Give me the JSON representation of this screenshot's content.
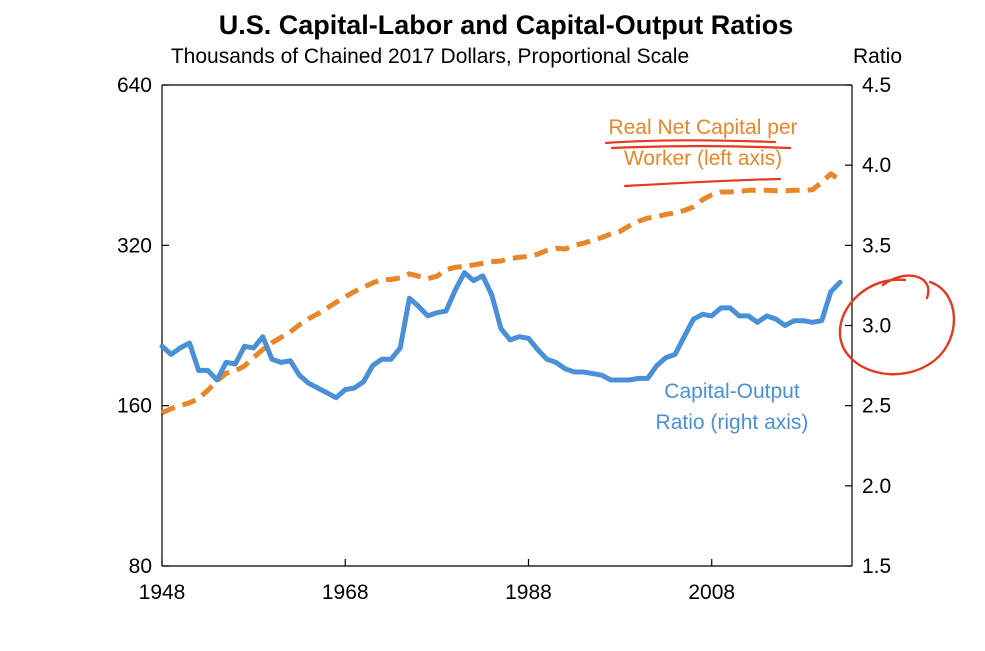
{
  "chart_data": {
    "type": "line",
    "title": "U.S. Capital-Labor  and Capital-Output  Ratios",
    "subtitle": "Thousands of Chained 2017 Dollars, Proportional Scale",
    "right_axis_label": "Ratio",
    "left_axis": {
      "scale": "log",
      "range": [
        80,
        640
      ],
      "ticks": [
        "640",
        "320",
        "160",
        "80"
      ],
      "tick_values": [
        640,
        320,
        160,
        80
      ]
    },
    "right_axis": {
      "scale": "linear",
      "range": [
        1.5,
        4.5
      ],
      "ticks": [
        "4.5",
        "4.0",
        "3.5",
        "3.0",
        "2.5",
        "2.0",
        "1.5"
      ],
      "tick_values": [
        4.5,
        4.0,
        3.5,
        3.0,
        2.5,
        2.0,
        1.5
      ]
    },
    "x_axis": {
      "range": [
        1948,
        2022
      ],
      "ticks": [
        "1948",
        "1968",
        "1988",
        "2008"
      ],
      "tick_values": [
        1948,
        1968,
        1988,
        2008
      ]
    },
    "grid": false,
    "series": [
      {
        "name_line1": "Real Net Capital per",
        "name_line2": "Worker (left axis)",
        "axis": "left",
        "color": "#e8862a",
        "style": "dashed",
        "x": [
          1948,
          1949,
          1950,
          1951,
          1952,
          1953,
          1954,
          1955,
          1956,
          1957,
          1958,
          1959,
          1960,
          1961,
          1962,
          1963,
          1964,
          1965,
          1966,
          1967,
          1968,
          1969,
          1970,
          1971,
          1972,
          1973,
          1974,
          1975,
          1976,
          1977,
          1978,
          1979,
          1980,
          1981,
          1982,
          1983,
          1984,
          1985,
          1986,
          1987,
          1988,
          1989,
          1990,
          1991,
          1992,
          1993,
          1994,
          1995,
          1996,
          1997,
          1998,
          1999,
          2000,
          2001,
          2002,
          2003,
          2004,
          2005,
          2006,
          2007,
          2008,
          2009,
          2010,
          2011,
          2012,
          2013,
          2014,
          2015,
          2016,
          2017,
          2018,
          2019,
          2020,
          2021,
          2022
        ],
        "values": [
          155,
          158,
          160,
          162,
          165,
          171,
          178,
          184,
          186,
          190,
          197,
          204,
          210,
          215,
          220,
          227,
          233,
          238,
          244,
          250,
          256,
          262,
          267,
          272,
          276,
          276,
          278,
          283,
          280,
          277,
          280,
          288,
          291,
          292,
          294,
          296,
          298,
          299,
          302,
          304,
          305,
          308,
          313,
          316,
          315,
          320,
          323,
          327,
          331,
          336,
          340,
          348,
          355,
          360,
          362,
          366,
          368,
          372,
          378,
          390,
          398,
          403,
          403,
          404,
          406,
          406,
          406,
          405,
          405,
          406,
          406,
          407,
          420,
          436,
          424
        ]
      },
      {
        "name_line1": "Capital-Output",
        "name_line2": "Ratio (right axis)",
        "axis": "right",
        "color": "#4a90d9",
        "style": "solid",
        "x": [
          1948,
          1949,
          1950,
          1951,
          1952,
          1953,
          1954,
          1955,
          1956,
          1957,
          1958,
          1959,
          1960,
          1961,
          1962,
          1963,
          1964,
          1965,
          1966,
          1967,
          1968,
          1969,
          1970,
          1971,
          1972,
          1973,
          1974,
          1975,
          1976,
          1977,
          1978,
          1979,
          1980,
          1981,
          1982,
          1983,
          1984,
          1985,
          1986,
          1987,
          1988,
          1989,
          1990,
          1991,
          1992,
          1993,
          1994,
          1995,
          1996,
          1997,
          1998,
          1999,
          2000,
          2001,
          2002,
          2003,
          2004,
          2005,
          2006,
          2007,
          2008,
          2009,
          2010,
          2011,
          2012,
          2013,
          2014,
          2015,
          2016,
          2017,
          2018,
          2019,
          2020,
          2021,
          2022
        ],
        "values": [
          2.87,
          2.82,
          2.86,
          2.89,
          2.72,
          2.72,
          2.66,
          2.77,
          2.76,
          2.87,
          2.86,
          2.93,
          2.79,
          2.77,
          2.78,
          2.69,
          2.64,
          2.61,
          2.58,
          2.55,
          2.6,
          2.61,
          2.65,
          2.75,
          2.79,
          2.79,
          2.86,
          3.17,
          3.12,
          3.06,
          3.08,
          3.09,
          3.22,
          3.33,
          3.28,
          3.31,
          3.19,
          2.98,
          2.91,
          2.93,
          2.92,
          2.85,
          2.79,
          2.77,
          2.73,
          2.71,
          2.71,
          2.7,
          2.69,
          2.66,
          2.66,
          2.66,
          2.67,
          2.67,
          2.75,
          2.8,
          2.82,
          2.93,
          3.04,
          3.07,
          3.06,
          3.11,
          3.11,
          3.06,
          3.06,
          3.02,
          3.06,
          3.04,
          3.0,
          3.03,
          3.03,
          3.02,
          3.03,
          3.21,
          3.27
        ]
      }
    ],
    "annotations": {
      "handwritten_marks": "red-pen-underlines-and-circle"
    },
    "colors": {
      "orange": "#e8862a",
      "blue": "#4a90d9",
      "red_pen": "#e53920"
    }
  }
}
